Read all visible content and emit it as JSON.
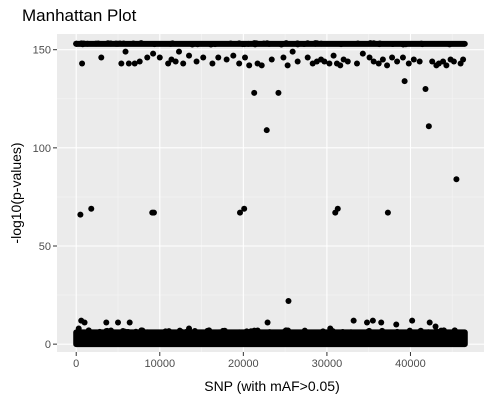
{
  "chart_data": {
    "type": "scatter",
    "title": "Manhattan Plot",
    "xlabel": "SNP (with mAF>0.05)",
    "ylabel": "-log10(p-values)",
    "xlim": [
      -2300,
      48800
    ],
    "ylim": [
      -4,
      158
    ],
    "x_ticks": [
      0,
      10000,
      20000,
      30000,
      40000
    ],
    "x_tick_labels": [
      "0",
      "10000",
      "20000",
      "30000",
      "40000"
    ],
    "y_ticks": [
      0,
      50,
      100,
      150
    ],
    "y_tick_labels": [
      "0",
      "50",
      "100",
      "150"
    ],
    "grid": true,
    "legend": "none",
    "colors": {
      "panel_background": "#ebebeb",
      "grid_major": "#ffffff",
      "grid_minor": "#f5f5f5",
      "point": "#000000"
    },
    "x_range_all_snps": [
      0,
      46500
    ],
    "band_value": 153,
    "cluster_low_range": [
      0,
      6
    ],
    "points": [
      [
        700,
        143
      ],
      [
        3000,
        146
      ],
      [
        5400,
        143
      ],
      [
        5900,
        149
      ],
      [
        6300,
        143
      ],
      [
        7000,
        143
      ],
      [
        7600,
        144
      ],
      [
        8500,
        146
      ],
      [
        9200,
        148
      ],
      [
        10000,
        146
      ],
      [
        11000,
        143
      ],
      [
        11400,
        145
      ],
      [
        11900,
        144
      ],
      [
        12300,
        149
      ],
      [
        12800,
        143
      ],
      [
        13500,
        147
      ],
      [
        14400,
        144
      ],
      [
        15200,
        146
      ],
      [
        16300,
        143
      ],
      [
        17000,
        146
      ],
      [
        18000,
        145
      ],
      [
        18800,
        147
      ],
      [
        19500,
        143
      ],
      [
        20200,
        146
      ],
      [
        20700,
        142
      ],
      [
        21300,
        128
      ],
      [
        21700,
        143
      ],
      [
        22200,
        142
      ],
      [
        22800,
        109
      ],
      [
        23400,
        145
      ],
      [
        24200,
        128
      ],
      [
        24800,
        146
      ],
      [
        25300,
        142
      ],
      [
        25900,
        149
      ],
      [
        26500,
        144
      ],
      [
        27700,
        146
      ],
      [
        28300,
        143
      ],
      [
        28800,
        144
      ],
      [
        29300,
        145
      ],
      [
        29700,
        144
      ],
      [
        30300,
        143
      ],
      [
        30800,
        147
      ],
      [
        31200,
        143
      ],
      [
        31600,
        142
      ],
      [
        32000,
        145
      ],
      [
        32500,
        144
      ],
      [
        33600,
        143
      ],
      [
        34300,
        148
      ],
      [
        35100,
        146
      ],
      [
        35600,
        144
      ],
      [
        36200,
        143
      ],
      [
        36700,
        145
      ],
      [
        37200,
        142
      ],
      [
        37800,
        146
      ],
      [
        38400,
        144
      ],
      [
        39100,
        146
      ],
      [
        39300,
        134
      ],
      [
        39800,
        143
      ],
      [
        40400,
        145
      ],
      [
        41100,
        144
      ],
      [
        41800,
        130
      ],
      [
        42200,
        111
      ],
      [
        42600,
        144
      ],
      [
        43100,
        142
      ],
      [
        43400,
        143
      ],
      [
        43900,
        144
      ],
      [
        44300,
        142
      ],
      [
        44800,
        145
      ],
      [
        45200,
        144
      ],
      [
        45500,
        84
      ],
      [
        46000,
        143
      ],
      [
        46300,
        145
      ],
      [
        500,
        66
      ],
      [
        1800,
        69
      ],
      [
        9100,
        67
      ],
      [
        9300,
        67
      ],
      [
        19600,
        67
      ],
      [
        20100,
        69
      ],
      [
        31000,
        67
      ],
      [
        31300,
        69
      ],
      [
        37300,
        67
      ],
      [
        25400,
        22
      ],
      [
        300,
        8
      ],
      [
        600,
        12
      ],
      [
        1000,
        11
      ],
      [
        1500,
        7
      ],
      [
        3600,
        11
      ],
      [
        5000,
        11
      ],
      [
        6400,
        11
      ],
      [
        7800,
        7
      ],
      [
        11200,
        6
      ],
      [
        13500,
        8
      ],
      [
        15900,
        7
      ],
      [
        17100,
        6
      ],
      [
        19500,
        6
      ],
      [
        22900,
        11
      ],
      [
        25100,
        7
      ],
      [
        27400,
        6
      ],
      [
        30400,
        8
      ],
      [
        33200,
        12
      ],
      [
        34800,
        11
      ],
      [
        35500,
        12
      ],
      [
        36500,
        11
      ],
      [
        38300,
        10
      ],
      [
        40200,
        12
      ],
      [
        42300,
        11
      ],
      [
        43000,
        9
      ],
      [
        44000,
        7
      ],
      [
        45300,
        7
      ],
      [
        46100,
        5
      ]
    ]
  }
}
